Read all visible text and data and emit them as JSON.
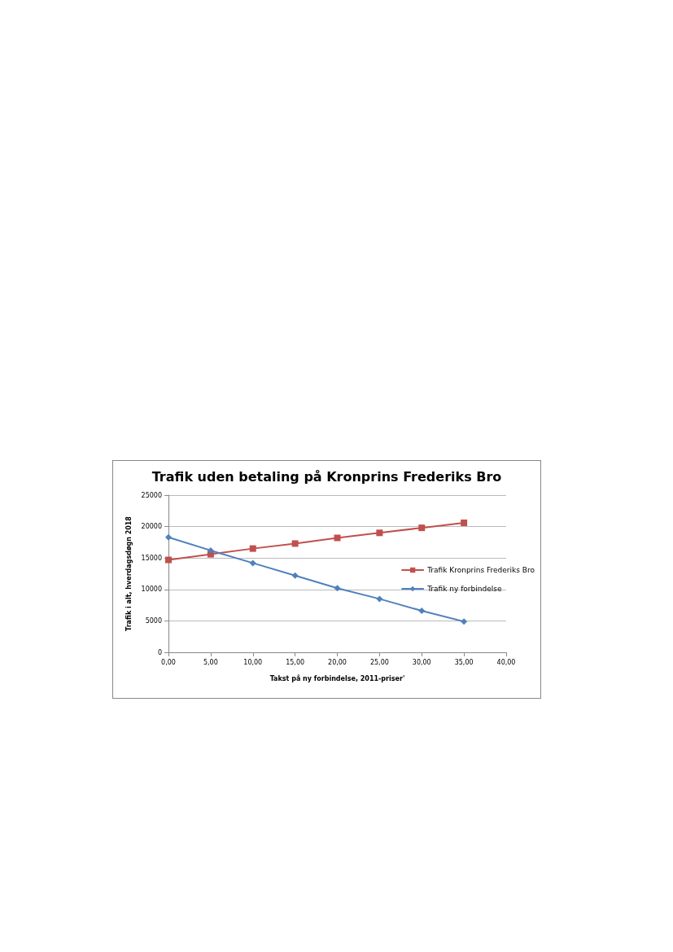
{
  "chart_data": {
    "type": "line",
    "title": "Trafik uden betaling på Kronprins Frederiks Bro",
    "xlabel": "Takst på ny forbindelse, 2011-priser'",
    "ylabel": "Trafik i alt, hverdagsdøgn 2018",
    "x": [
      0,
      5,
      10,
      15,
      20,
      25,
      30,
      35
    ],
    "series": [
      {
        "name": "Trafik Kronprins Frederiks Bro",
        "color": "#c0504d",
        "marker": "square",
        "values": [
          14700,
          15600,
          16500,
          17300,
          18200,
          19000,
          19800,
          20600
        ]
      },
      {
        "name": "Trafik ny forbindelse",
        "color": "#4f81bd",
        "marker": "diamond",
        "values": [
          18300,
          16200,
          14200,
          12200,
          10200,
          8500,
          6600,
          4900
        ]
      }
    ],
    "xlim": [
      0,
      40
    ],
    "xticks": [
      {
        "value": 0,
        "label": "0,00"
      },
      {
        "value": 5,
        "label": "5,00"
      },
      {
        "value": 10,
        "label": "10,00"
      },
      {
        "value": 15,
        "label": "15,00"
      },
      {
        "value": 20,
        "label": "20,00"
      },
      {
        "value": 25,
        "label": "25,00"
      },
      {
        "value": 30,
        "label": "30,00"
      },
      {
        "value": 35,
        "label": "35,00"
      },
      {
        "value": 40,
        "label": "40,00"
      }
    ],
    "ylim": [
      0,
      25000
    ],
    "yticks": [
      0,
      5000,
      10000,
      15000,
      20000,
      25000
    ],
    "grid": "y",
    "legend": "right",
    "line_style": "solid"
  }
}
